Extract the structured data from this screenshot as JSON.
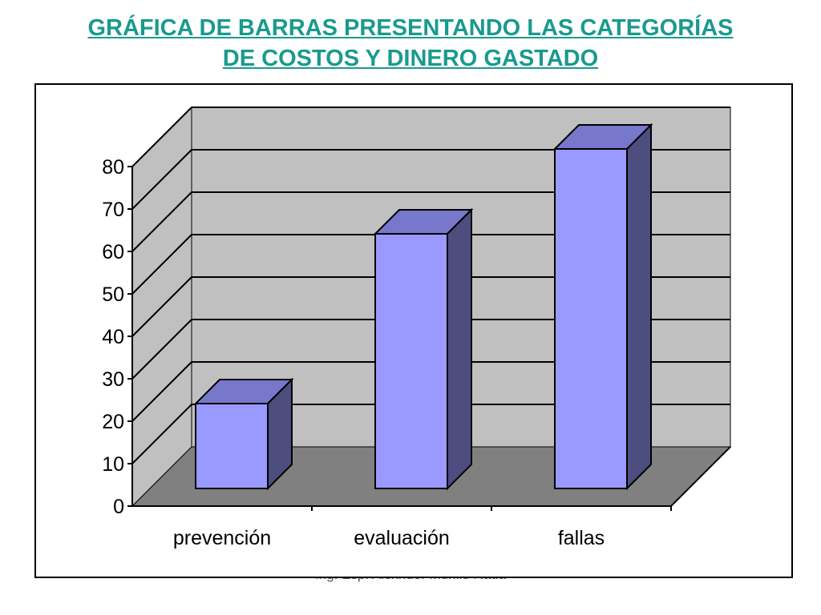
{
  "title": {
    "line1": "GRÁFICA DE BARRAS PRESENTANDO LAS CATEGORÍAS",
    "line2": "DE COSTOS Y DINERO GASTADO"
  },
  "footer": "Ing. Esp. Alexnder Murillo Rada",
  "colors": {
    "title": "#1a9a8e",
    "bar_front": "#9999ff",
    "bar_top": "#7777cc",
    "bar_side": "#4d4d80",
    "wall": "#c0c0c0",
    "floor": "#808080"
  },
  "chart_data": {
    "type": "bar",
    "style": "3d-column",
    "categories": [
      "prevención",
      "evaluación",
      "fallas"
    ],
    "values": [
      20,
      60,
      80
    ],
    "yticks": [
      0,
      10,
      20,
      30,
      40,
      50,
      60,
      70,
      80
    ],
    "ylim": [
      0,
      80
    ],
    "grid": true,
    "legend": "none",
    "xlabel": "",
    "ylabel": ""
  }
}
